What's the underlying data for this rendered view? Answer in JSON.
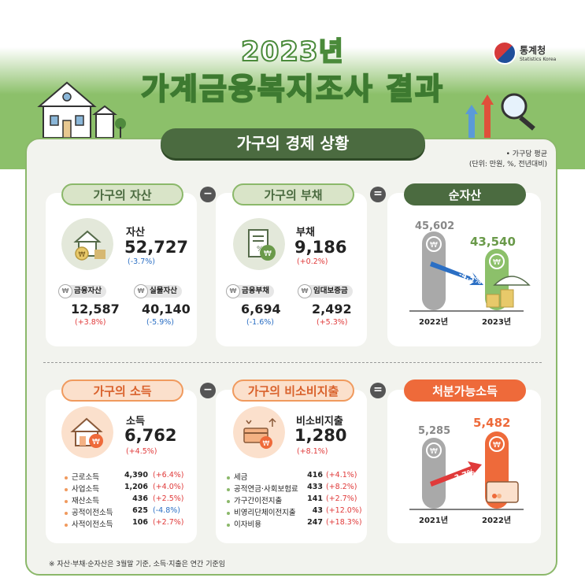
{
  "header": {
    "year_title": "2023년",
    "main_title": "가계금융복지조사 결과",
    "logo_korean": "통계청",
    "logo_english": "Statistics Korea"
  },
  "section_banner": "가구의 경제 상황",
  "unit_note": {
    "line1": "• 가구당 평균",
    "line2": "(단위: 만원, %, 전년대비)"
  },
  "operators": {
    "minus": "−",
    "equals": "="
  },
  "assets": {
    "pill": "가구의 자산",
    "label": "자산",
    "value": "52,727",
    "change": "(-3.7%)",
    "sub": [
      {
        "label": "금융자산",
        "value": "12,587",
        "change": "(+3.8%)"
      },
      {
        "label": "실물자산",
        "value": "40,140",
        "change": "(-5.9%)"
      }
    ]
  },
  "debt": {
    "pill": "가구의 부채",
    "label": "부채",
    "value": "9,186",
    "change": "(+0.2%)",
    "sub": [
      {
        "label": "금융부채",
        "value": "6,694",
        "change": "(-1.6%)"
      },
      {
        "label": "임대보증금",
        "value": "2,492",
        "change": "(+5.3%)"
      }
    ]
  },
  "net_assets": {
    "pill": "순자산",
    "change_label": "-4.5%",
    "years": [
      "2022년",
      "2023년"
    ],
    "value_labels": [
      "45,602",
      "43,540"
    ]
  },
  "income": {
    "pill": "가구의 소득",
    "label": "소득",
    "value": "6,762",
    "change": "(+4.5%)",
    "items": [
      {
        "label": "근로소득",
        "value": "4,390",
        "change": "(+6.4%)"
      },
      {
        "label": "사업소득",
        "value": "1,206",
        "change": "(+4.0%)"
      },
      {
        "label": "재산소득",
        "value": "436",
        "change": "(+2.5%)"
      },
      {
        "label": "공적이전소득",
        "value": "625",
        "change": "(-4.8%)"
      },
      {
        "label": "사적이전소득",
        "value": "106",
        "change": "(+2.7%)"
      }
    ]
  },
  "non_consumption": {
    "pill": "가구의 비소비지출",
    "label": "비소비지출",
    "value": "1,280",
    "change": "(+8.1%)",
    "items": [
      {
        "label": "세금",
        "value": "416",
        "change": "(+4.1%)"
      },
      {
        "label": "공적연금·사회보험료",
        "value": "433",
        "change": "(+8.2%)"
      },
      {
        "label": "가구간이전지출",
        "value": "141",
        "change": "(+2.7%)"
      },
      {
        "label": "비영리단체이전지출",
        "value": "43",
        "change": "(+12.0%)"
      },
      {
        "label": "이자비용",
        "value": "247",
        "change": "(+18.3%)"
      }
    ]
  },
  "disposable": {
    "pill": "처분가능소득",
    "change_label": "3.7%",
    "years": [
      "2021년",
      "2022년"
    ],
    "value_labels": [
      "5,285",
      "5,482"
    ]
  },
  "colors": {
    "green": "#8cc06a",
    "dark_green": "#4b6b40",
    "orange": "#ee6a3a",
    "red": "#e03a3a",
    "blue": "#2b6fc4"
  },
  "footnote": "※ 자산·부채·순자산은 3월말 기준, 소득·지출은 연간 기준임"
}
